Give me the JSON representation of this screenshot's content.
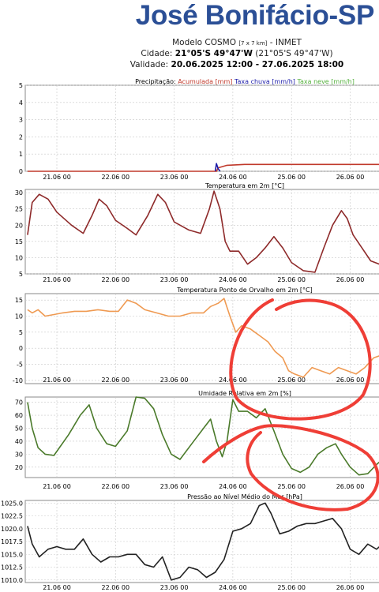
{
  "header": {
    "title": "José Bonifácio-SP",
    "model_label": "Modelo COSMO",
    "model_res": "[7 x 7 km]",
    "model_source": "- INMET",
    "city_label": "Cidade:",
    "city_coords": "21°05'S 49°47'W",
    "city_coords_paren": "(21°05'S 49°47'W)",
    "validity_label": "Validade:",
    "validity_value": "20.06.2025 12:00 - 27.06.2025 18:00"
  },
  "colors": {
    "accumulated": "#c0392b",
    "rain_rate": "#1a1aa8",
    "snow_rate": "#55b13e",
    "temperature": "#8e2a2a",
    "dewpoint": "#ef9a52",
    "humidity": "#4a7a2a",
    "pressure": "#222222",
    "annotation": "#ef3e36",
    "title": "#2b4f96"
  },
  "chart_data": [
    {
      "type": "line",
      "name": "precipitation",
      "title_parts": [
        {
          "text": "Precipitação: ",
          "color": "#000000"
        },
        {
          "text": "Acumulada [mm] ",
          "color": "#c0392b"
        },
        {
          "text": "Taxa chuva [mm/h] ",
          "color": "#1a1aa8"
        },
        {
          "text": "Taxa neve [mm/h]",
          "color": "#55b13e"
        }
      ],
      "ylim": [
        0,
        5
      ],
      "yticks": [
        0,
        1,
        2,
        3,
        4,
        5
      ],
      "x_ticks": [
        "21.06 00",
        "22.06 00",
        "23.06 00",
        "24.06 00",
        "25.06 00",
        "26.06 00"
      ],
      "series": [
        {
          "color": "#c0392b",
          "x": [
            20.5,
            23.72,
            23.75,
            23.9,
            24.2,
            26.8
          ],
          "y": [
            0,
            0,
            0.2,
            0.35,
            0.4,
            0.4
          ]
        },
        {
          "color": "#1a1aa8",
          "x": [
            23.7,
            23.72,
            23.75,
            23.78
          ],
          "y": [
            0,
            0.45,
            0.15,
            0
          ]
        }
      ]
    },
    {
      "type": "line",
      "name": "temperature",
      "title_parts": [
        {
          "text": "Temperatura em 2m [°C]",
          "color": "#000000"
        }
      ],
      "ylim": [
        5,
        31
      ],
      "yticks": [
        5,
        10,
        15,
        20,
        25,
        30
      ],
      "x_ticks": [
        "21.06 00",
        "22.06 00",
        "23.06 00",
        "24.06 00",
        "25.06 00",
        "26.06 00"
      ],
      "series": [
        {
          "color": "#8e2a2a",
          "x": [
            20.5,
            20.58,
            20.7,
            20.85,
            21.0,
            21.25,
            21.45,
            21.6,
            21.72,
            21.85,
            22.0,
            22.2,
            22.35,
            22.55,
            22.72,
            22.85,
            23.0,
            23.25,
            23.45,
            23.6,
            23.68,
            23.78,
            23.87,
            23.95,
            24.1,
            24.25,
            24.4,
            24.55,
            24.7,
            24.85,
            25.0,
            25.2,
            25.4,
            25.55,
            25.7,
            25.85,
            25.95,
            26.05,
            26.2,
            26.35,
            26.5,
            26.65,
            26.8
          ],
          "y": [
            17,
            27,
            29.5,
            28,
            24,
            20,
            17.5,
            23,
            28,
            26,
            21.5,
            19,
            17,
            23,
            29.5,
            27,
            21,
            18.5,
            17.5,
            25,
            30.5,
            25,
            15,
            12,
            12,
            8,
            10,
            13,
            16.5,
            13,
            8.5,
            6,
            5.5,
            13,
            20,
            24.5,
            22,
            17,
            13,
            9,
            8,
            10,
            13
          ]
        }
      ]
    },
    {
      "type": "line",
      "name": "dewpoint",
      "title_parts": [
        {
          "text": "Temperatura Ponto de Orvalho em 2m [°C]",
          "color": "#000000"
        }
      ],
      "ylim": [
        -11,
        17
      ],
      "yticks": [
        -10,
        -5,
        0,
        5,
        10,
        15
      ],
      "x_ticks": [
        "21.06 00",
        "22.06 00",
        "23.06 00",
        "24.06 00",
        "25.06 00",
        "26.06 00"
      ],
      "series": [
        {
          "color": "#ef9a52",
          "x": [
            20.5,
            20.58,
            20.68,
            20.8,
            20.95,
            21.1,
            21.3,
            21.5,
            21.7,
            21.9,
            22.05,
            22.2,
            22.35,
            22.5,
            22.7,
            22.9,
            23.1,
            23.3,
            23.5,
            23.62,
            23.75,
            23.85,
            23.95,
            24.05,
            24.15,
            24.3,
            24.45,
            24.6,
            24.72,
            24.85,
            24.95,
            25.05,
            25.2,
            25.35,
            25.5,
            25.65,
            25.8,
            25.95,
            26.1,
            26.25,
            26.4,
            26.55,
            26.7,
            26.8
          ],
          "y": [
            12,
            11,
            12,
            10,
            10.5,
            11,
            11.5,
            11.5,
            12,
            11.5,
            11.5,
            15,
            14,
            12,
            11,
            10,
            10,
            11,
            11,
            13,
            14,
            15.5,
            10,
            5,
            7,
            6,
            4,
            2,
            -1,
            -3,
            -7,
            -8,
            -9,
            -6,
            -7,
            -8,
            -6,
            -7,
            -8,
            -6,
            -3,
            -2,
            -0.5,
            0
          ]
        }
      ]
    },
    {
      "type": "line",
      "name": "humidity",
      "title_parts": [
        {
          "text": "Umidade Relativa em 2m [%]",
          "color": "#000000"
        }
      ],
      "ylim": [
        12,
        74
      ],
      "yticks": [
        20,
        30,
        40,
        50,
        60,
        70
      ],
      "x_ticks": [
        "21.06 00",
        "22.06 00",
        "23.06 00",
        "24.06 00",
        "25.06 00",
        "26.06 00"
      ],
      "series": [
        {
          "color": "#4a7a2a",
          "x": [
            20.5,
            20.58,
            20.68,
            20.8,
            20.95,
            21.2,
            21.4,
            21.55,
            21.68,
            21.85,
            22.0,
            22.2,
            22.35,
            22.5,
            22.65,
            22.8,
            22.95,
            23.1,
            23.3,
            23.5,
            23.62,
            23.72,
            23.82,
            23.9,
            24.0,
            24.1,
            24.25,
            24.4,
            24.55,
            24.7,
            24.85,
            25.0,
            25.15,
            25.3,
            25.45,
            25.6,
            25.75,
            25.85,
            26.0,
            26.15,
            26.3,
            26.45,
            26.6,
            26.8
          ],
          "y": [
            70,
            50,
            35,
            30,
            29,
            45,
            60,
            68,
            50,
            38,
            36,
            48,
            74,
            73,
            65,
            45,
            30,
            26,
            38,
            50,
            57,
            40,
            28,
            40,
            72,
            63,
            63,
            58,
            65,
            48,
            30,
            19,
            16,
            20,
            30,
            35,
            38,
            30,
            20,
            14,
            15,
            22,
            28,
            32
          ]
        }
      ]
    },
    {
      "type": "line",
      "name": "pressure",
      "title_parts": [
        {
          "text": "Pressão ao Nível Médio do Mar [hPa]",
          "color": "#000000"
        }
      ],
      "ylim": [
        1009.5,
        1025.5
      ],
      "yticks": [
        1010.0,
        1012.5,
        1015.0,
        1017.5,
        1020.0,
        1022.5,
        1025.0
      ],
      "x_ticks": [
        "21.06 00",
        "22.06 00",
        "23.06 00",
        "24.06 00",
        "25.06 00",
        "26.06 00"
      ],
      "series": [
        {
          "color": "#222222",
          "x": [
            20.5,
            20.58,
            20.7,
            20.85,
            21.0,
            21.15,
            21.3,
            21.45,
            21.6,
            21.75,
            21.9,
            22.05,
            22.2,
            22.35,
            22.5,
            22.65,
            22.8,
            22.95,
            23.1,
            23.25,
            23.4,
            23.55,
            23.7,
            23.85,
            24.0,
            24.15,
            24.3,
            24.45,
            24.55,
            24.65,
            24.8,
            24.95,
            25.1,
            25.25,
            25.4,
            25.55,
            25.7,
            25.85,
            26.0,
            26.15,
            26.3,
            26.45,
            26.6,
            26.8
          ],
          "y": [
            1020.5,
            1017,
            1014.5,
            1016,
            1016.5,
            1016,
            1016,
            1018,
            1015,
            1013.5,
            1014.5,
            1014.5,
            1015,
            1015,
            1013,
            1012.5,
            1014.5,
            1010,
            1010.5,
            1012.5,
            1012,
            1010.5,
            1011.5,
            1014,
            1019.5,
            1020,
            1021,
            1024.5,
            1025,
            1023,
            1019,
            1019.5,
            1020.5,
            1021,
            1021,
            1021.5,
            1022,
            1020,
            1016,
            1015,
            1017,
            1016,
            1017.5,
            1018
          ]
        }
      ]
    }
  ]
}
